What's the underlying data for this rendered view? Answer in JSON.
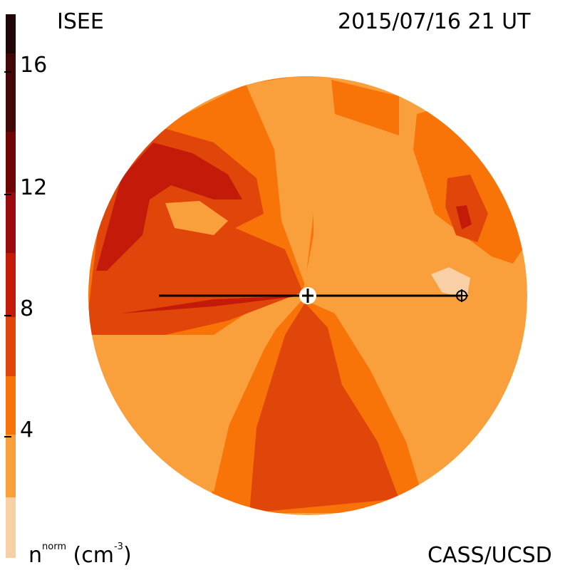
{
  "header": {
    "source": "ISEE",
    "timestamp": "2015/07/16 21 UT"
  },
  "footer": {
    "quantity": "n",
    "quantity_sup": "norm",
    "unit_open": " (cm",
    "unit_sup": "-3",
    "unit_close": ")",
    "credit": "CASS/UCSD"
  },
  "colorbar": {
    "labels": [
      "16",
      "12",
      "8",
      "4"
    ],
    "levels": [
      {
        "value": 2,
        "color": "#f9cfa5"
      },
      {
        "value": 4,
        "color": "#f9a03c"
      },
      {
        "value": 6,
        "color": "#f97408"
      },
      {
        "value": 8,
        "color": "#e0450a"
      },
      {
        "value": 10,
        "color": "#c41a0a"
      },
      {
        "value": 12,
        "color": "#9a0b0b"
      },
      {
        "value": 14,
        "color": "#6e0606"
      },
      {
        "value": 16,
        "color": "#420707"
      },
      {
        "value": 18,
        "color": "#1f0707"
      }
    ]
  },
  "plot": {
    "background_color": "#f9a03c",
    "line_color": "#000000",
    "center_symbol": "sun",
    "earth_symbol": "earth"
  }
}
